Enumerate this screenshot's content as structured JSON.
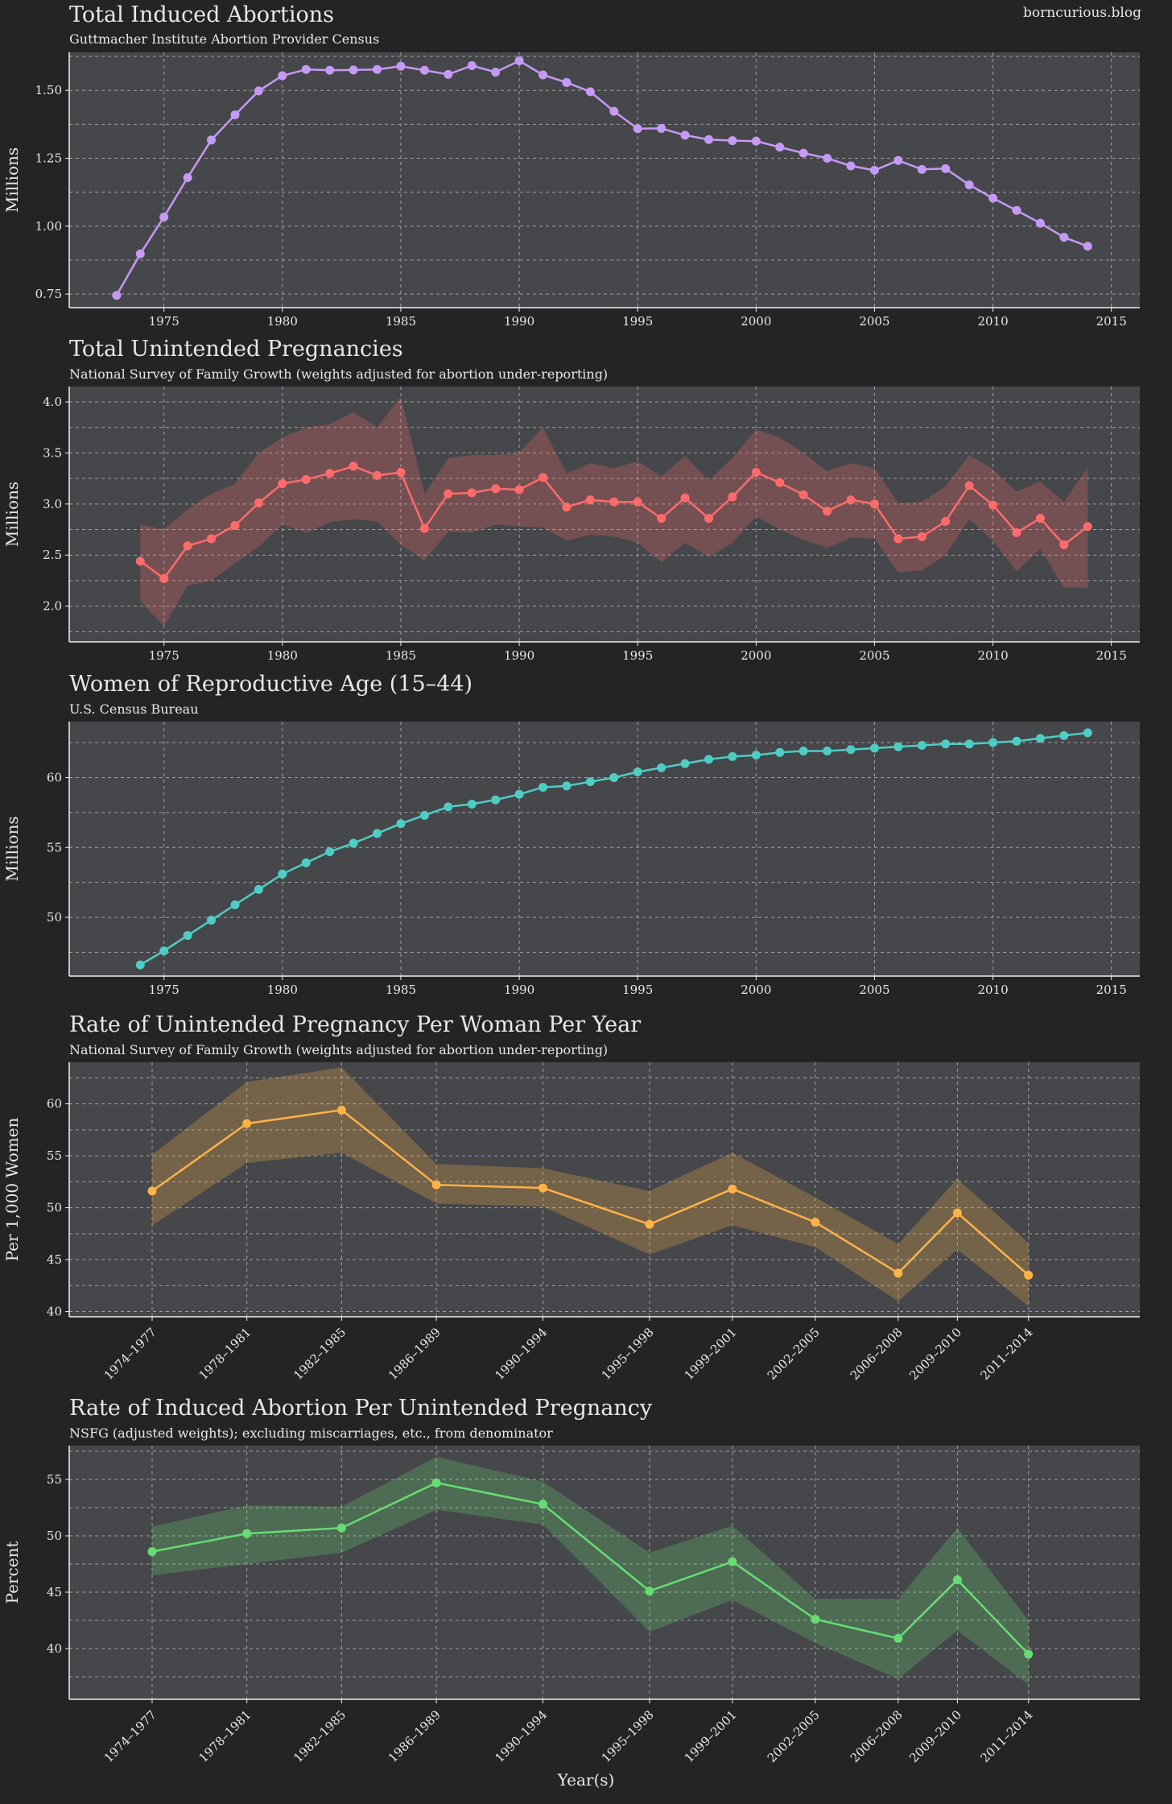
{
  "site": "borncurious.blog",
  "xlabel": "Year(s)",
  "colors": {
    "background": "#232426",
    "panel": "#46474a",
    "grid": "#bdbdbd",
    "text": "#e8e8e8",
    "purple": "#c59af5",
    "red": "#ff6b6b",
    "teal": "#4ecdc4",
    "orange": "#ffb347",
    "green": "#66dd73"
  },
  "chart_data": [
    {
      "type": "line",
      "title": "Total Induced Abortions",
      "subtitle": "Guttmacher Institute Abortion Provider Census",
      "ylabel": "Millions",
      "xlim": [
        1971,
        2016.2
      ],
      "ylim": [
        0.7,
        1.64
      ],
      "xticks": [
        1975,
        1980,
        1985,
        1990,
        1995,
        2000,
        2005,
        2010,
        2015
      ],
      "yticks": [
        0.75,
        1.0,
        1.25,
        1.5
      ],
      "ytick_labels": [
        "0.75",
        "1.00",
        "1.25",
        "1.50"
      ],
      "color": "purple",
      "x": [
        1973,
        1974,
        1975,
        1976,
        1977,
        1978,
        1979,
        1980,
        1981,
        1982,
        1983,
        1984,
        1985,
        1986,
        1987,
        1988,
        1989,
        1990,
        1991,
        1992,
        1993,
        1994,
        1995,
        1996,
        1997,
        1998,
        1999,
        2000,
        2001,
        2002,
        2003,
        2004,
        2005,
        2006,
        2007,
        2008,
        2009,
        2010,
        2011,
        2012,
        2013,
        2014
      ],
      "y": [
        0.745,
        0.898,
        1.034,
        1.179,
        1.317,
        1.41,
        1.498,
        1.554,
        1.577,
        1.574,
        1.575,
        1.577,
        1.589,
        1.574,
        1.559,
        1.591,
        1.567,
        1.609,
        1.557,
        1.529,
        1.495,
        1.423,
        1.359,
        1.36,
        1.335,
        1.319,
        1.315,
        1.313,
        1.291,
        1.269,
        1.25,
        1.222,
        1.206,
        1.242,
        1.209,
        1.212,
        1.152,
        1.103,
        1.058,
        1.011,
        0.959,
        0.926
      ]
    },
    {
      "type": "area",
      "title": "Total Unintended Pregnancies",
      "subtitle": "National Survey of Family Growth (weights adjusted for abortion under-reporting)",
      "ylabel": "Millions",
      "xlim": [
        1971,
        2016.2
      ],
      "ylim": [
        1.65,
        4.15
      ],
      "xticks": [
        1975,
        1980,
        1985,
        1990,
        1995,
        2000,
        2005,
        2010,
        2015
      ],
      "yticks": [
        2.0,
        2.5,
        3.0,
        3.5,
        4.0
      ],
      "ytick_labels": [
        "2.0",
        "2.5",
        "3.0",
        "3.5",
        "4.0"
      ],
      "color": "red",
      "x": [
        1974,
        1975,
        1976,
        1977,
        1978,
        1979,
        1980,
        1981,
        1982,
        1983,
        1984,
        1985,
        1986,
        1987,
        1988,
        1989,
        1990,
        1991,
        1992,
        1993,
        1994,
        1995,
        1996,
        1997,
        1998,
        1999,
        2000,
        2001,
        2002,
        2003,
        2004,
        2005,
        2006,
        2007,
        2008,
        2009,
        2010,
        2011,
        2012,
        2013,
        2014
      ],
      "y": [
        2.44,
        2.27,
        2.59,
        2.66,
        2.79,
        3.01,
        3.2,
        3.24,
        3.3,
        3.37,
        3.28,
        3.31,
        2.76,
        3.1,
        3.11,
        3.15,
        3.14,
        3.26,
        2.97,
        3.04,
        3.02,
        3.02,
        2.86,
        3.06,
        2.86,
        3.07,
        3.31,
        3.21,
        3.09,
        2.93,
        3.04,
        3.0,
        2.66,
        2.68,
        2.83,
        3.18,
        2.99,
        2.72,
        2.86,
        2.6,
        2.78
      ],
      "lower": [
        2.05,
        1.8,
        2.2,
        2.25,
        2.42,
        2.58,
        2.8,
        2.72,
        2.82,
        2.85,
        2.83,
        2.6,
        2.45,
        2.73,
        2.72,
        2.8,
        2.78,
        2.77,
        2.64,
        2.7,
        2.68,
        2.62,
        2.43,
        2.62,
        2.48,
        2.62,
        2.88,
        2.75,
        2.65,
        2.57,
        2.67,
        2.66,
        2.33,
        2.35,
        2.5,
        2.85,
        2.64,
        2.34,
        2.56,
        2.18,
        2.18
      ],
      "upper": [
        2.8,
        2.75,
        2.95,
        3.1,
        3.2,
        3.5,
        3.65,
        3.75,
        3.78,
        3.9,
        3.75,
        4.05,
        3.1,
        3.45,
        3.48,
        3.48,
        3.5,
        3.75,
        3.3,
        3.4,
        3.35,
        3.42,
        3.27,
        3.47,
        3.23,
        3.45,
        3.73,
        3.65,
        3.5,
        3.32,
        3.4,
        3.35,
        3.01,
        3.02,
        3.17,
        3.48,
        3.34,
        3.12,
        3.22,
        3.02,
        3.36
      ]
    },
    {
      "type": "line",
      "title": "Women of Reproductive Age (15–44)",
      "subtitle": "U.S. Census Bureau",
      "ylabel": "Millions",
      "xlim": [
        1971,
        2016.2
      ],
      "ylim": [
        45.8,
        64
      ],
      "xticks": [
        1975,
        1980,
        1985,
        1990,
        1995,
        2000,
        2005,
        2010,
        2015
      ],
      "yticks": [
        50,
        55,
        60
      ],
      "ytick_labels": [
        "50",
        "55",
        "60"
      ],
      "color": "teal",
      "x": [
        1974,
        1975,
        1976,
        1977,
        1978,
        1979,
        1980,
        1981,
        1982,
        1983,
        1984,
        1985,
        1986,
        1987,
        1988,
        1989,
        1990,
        1991,
        1992,
        1993,
        1994,
        1995,
        1996,
        1997,
        1998,
        1999,
        2000,
        2001,
        2002,
        2003,
        2004,
        2005,
        2006,
        2007,
        2008,
        2009,
        2010,
        2011,
        2012,
        2013,
        2014
      ],
      "y": [
        46.6,
        47.6,
        48.7,
        49.8,
        50.9,
        52.0,
        53.1,
        53.9,
        54.7,
        55.3,
        56.0,
        56.7,
        57.3,
        57.9,
        58.1,
        58.4,
        58.8,
        59.3,
        59.4,
        59.7,
        60.0,
        60.4,
        60.7,
        61.0,
        61.3,
        61.5,
        61.6,
        61.8,
        61.9,
        61.9,
        62.0,
        62.1,
        62.2,
        62.3,
        62.4,
        62.4,
        62.5,
        62.6,
        62.8,
        63.0,
        63.2
      ]
    },
    {
      "type": "area",
      "title": "Rate of Unintended Pregnancy Per Woman Per Year",
      "subtitle": "National Survey of Family Growth (weights adjusted for abortion under-reporting)",
      "ylabel": "Per 1,000 Women",
      "x_is_periods": true,
      "xlim": [
        1971,
        2016.2
      ],
      "ylim": [
        39.5,
        64
      ],
      "yticks": [
        40,
        45,
        50,
        55,
        60
      ],
      "ytick_labels": [
        "40",
        "45",
        "50",
        "55",
        "60"
      ],
      "color": "orange",
      "categories": [
        "1974–1977",
        "1978–1981",
        "1982–1985",
        "1986–1989",
        "1990–1994",
        "1995–1998",
        "1999–2001",
        "2002–2005",
        "2006–2008",
        "2009–2010",
        "2011–2014"
      ],
      "x": [
        1974.5,
        1978.5,
        1982.5,
        1986.5,
        1991.0,
        1995.5,
        1999.0,
        2002.5,
        2006.0,
        2008.5,
        2011.5
      ],
      "y": [
        51.6,
        58.1,
        59.4,
        52.2,
        51.9,
        48.4,
        51.8,
        48.6,
        43.7,
        49.5,
        43.5
      ],
      "lower": [
        48.3,
        54.3,
        55.3,
        50.4,
        50.1,
        45.5,
        48.3,
        46.2,
        41.0,
        46.0,
        40.5
      ],
      "upper": [
        55.1,
        62.1,
        63.5,
        54.2,
        53.8,
        51.6,
        55.3,
        51.0,
        46.5,
        52.8,
        46.6
      ]
    },
    {
      "type": "area",
      "title": "Rate of Induced Abortion Per Unintended Pregnancy",
      "subtitle": "NSFG (adjusted weights); excluding miscarriages, etc., from denominator",
      "ylabel": "Percent",
      "x_is_periods": true,
      "xlim": [
        1971,
        2016.2
      ],
      "ylim": [
        35.5,
        58
      ],
      "yticks": [
        40,
        45,
        50,
        55
      ],
      "ytick_labels": [
        "40",
        "45",
        "50",
        "55"
      ],
      "color": "green",
      "categories": [
        "1974–1977",
        "1978–1981",
        "1982–1985",
        "1986–1989",
        "1990–1994",
        "1995–1998",
        "1999–2001",
        "2002–2005",
        "2006–2008",
        "2009–2010",
        "2011–2014"
      ],
      "x": [
        1974.5,
        1978.5,
        1982.5,
        1986.5,
        1991.0,
        1995.5,
        1999.0,
        2002.5,
        2006.0,
        2008.5,
        2011.5
      ],
      "y": [
        48.6,
        50.2,
        50.7,
        54.7,
        52.8,
        45.1,
        47.7,
        42.6,
        40.9,
        46.1,
        39.5
      ],
      "lower": [
        46.5,
        47.5,
        48.5,
        52.3,
        51.0,
        41.5,
        44.3,
        40.5,
        37.3,
        41.6,
        36.8
      ],
      "upper": [
        50.8,
        52.7,
        52.6,
        57.0,
        54.8,
        48.5,
        50.9,
        44.4,
        44.4,
        50.7,
        42.5
      ]
    }
  ]
}
